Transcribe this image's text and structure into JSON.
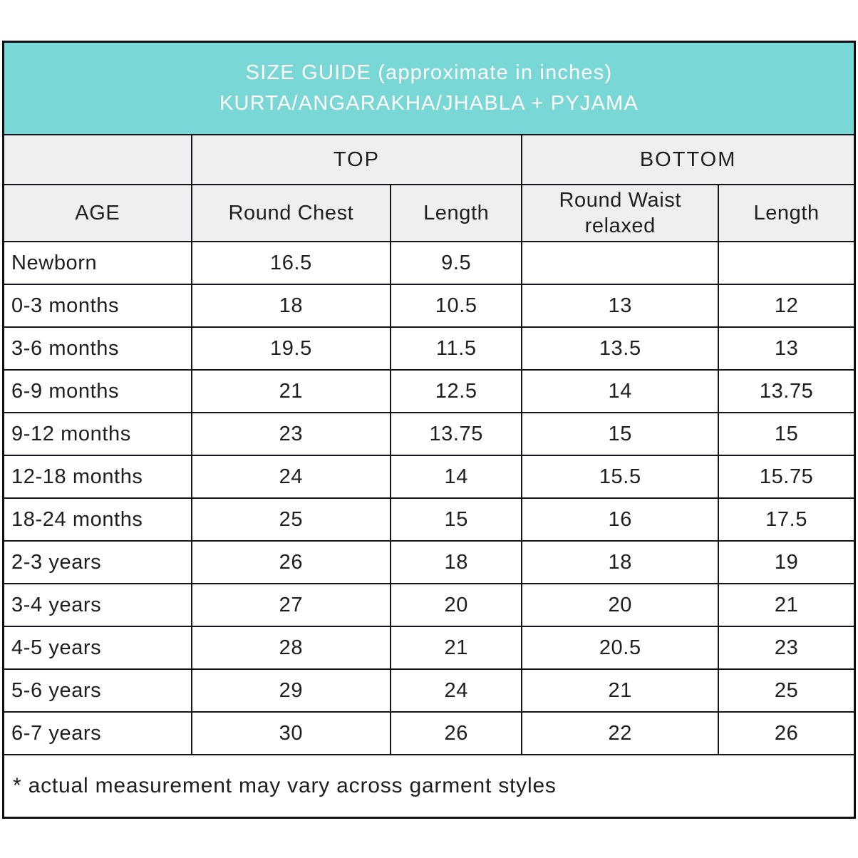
{
  "colors": {
    "accent_teal": "#79d7d5",
    "header_gray": "#efefef",
    "border": "#15151d",
    "title_text": "#ffffff",
    "body_text": "#1e1e1e"
  },
  "header": {
    "title_line1": "SIZE GUIDE (approximate in inches)",
    "title_line2": "KURTA/ANGARAKHA/JHABLA + PYJAMA"
  },
  "table": {
    "group_headers": {
      "top": "TOP",
      "bottom": "BOTTOM"
    },
    "column_headers": [
      "AGE",
      "Round Chest",
      "Length",
      "Round Waist relaxed",
      "Length"
    ],
    "rows": [
      {
        "cells": [
          "Newborn",
          "16.5",
          "9.5",
          "",
          ""
        ]
      },
      {
        "cells": [
          "0-3 months",
          "18",
          "10.5",
          "13",
          "12"
        ]
      },
      {
        "cells": [
          "3-6 months",
          "19.5",
          "11.5",
          "13.5",
          "13"
        ]
      },
      {
        "cells": [
          "6-9 months",
          "21",
          "12.5",
          "14",
          "13.75"
        ]
      },
      {
        "cells": [
          "9-12 months",
          "23",
          "13.75",
          "15",
          "15"
        ]
      },
      {
        "cells": [
          "12-18 months",
          "24",
          "14",
          "15.5",
          "15.75"
        ]
      },
      {
        "cells": [
          "18-24 months",
          "25",
          "15",
          "16",
          "17.5"
        ]
      },
      {
        "cells": [
          "2-3 years",
          "26",
          "18",
          "18",
          "19"
        ]
      },
      {
        "cells": [
          "3-4 years",
          "27",
          "20",
          "20",
          "21"
        ]
      },
      {
        "cells": [
          "4-5 years",
          "28",
          "21",
          "20.5",
          "23"
        ]
      },
      {
        "cells": [
          "5-6 years",
          "29",
          "24",
          "21",
          "25"
        ]
      },
      {
        "cells": [
          "6-7 years",
          "30",
          "26",
          "22",
          "26"
        ]
      }
    ],
    "footnote": "* actual measurement may vary across garment styles"
  }
}
